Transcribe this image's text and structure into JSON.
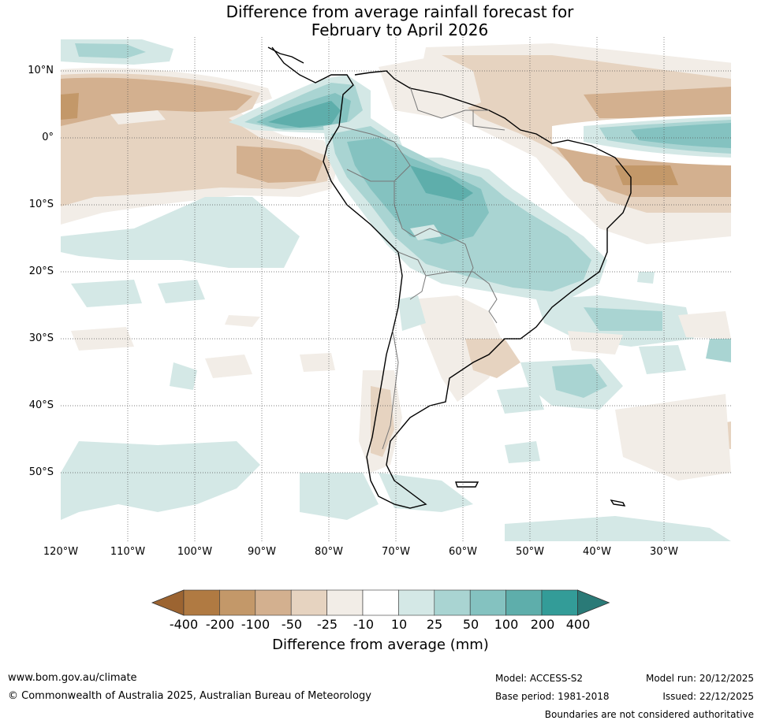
{
  "title": {
    "line1": "Difference from average rainfall forecast for",
    "line2": "February to April 2026"
  },
  "map": {
    "latitude_labels": [
      "10°N",
      "0°",
      "10°S",
      "20°S",
      "30°S",
      "40°S",
      "50°S"
    ],
    "longitude_labels": [
      "120°W",
      "110°W",
      "100°W",
      "90°W",
      "80°W",
      "70°W",
      "60°W",
      "50°W",
      "40°W",
      "30°W"
    ]
  },
  "colorbar": {
    "labels": [
      "-400",
      "-200",
      "-100",
      "-50",
      "-25",
      "-10",
      "10",
      "25",
      "50",
      "100",
      "200",
      "400"
    ],
    "colors": [
      "#9c6431",
      "#b07a42",
      "#c39869",
      "#d3b08f",
      "#e6d3c0",
      "#f2ede7",
      "#ffffff",
      "#d4e8e6",
      "#a9d4d2",
      "#84c2c0",
      "#5eaeab",
      "#339c98",
      "#2a7a77"
    ],
    "title": "Difference from average (mm)"
  },
  "footer": {
    "website": "www.bom.gov.au/climate",
    "copyright": "© Commonwealth of Australia 2025, Australian Bureau of Meteorology",
    "model": "Model: ACCESS-S2",
    "base_period": "Base period: 1981-2018",
    "model_run": "Model run: 20/12/2025",
    "issued": "Issued: 22/12/2025",
    "boundaries_note": "Boundaries are not considered authoritative"
  }
}
